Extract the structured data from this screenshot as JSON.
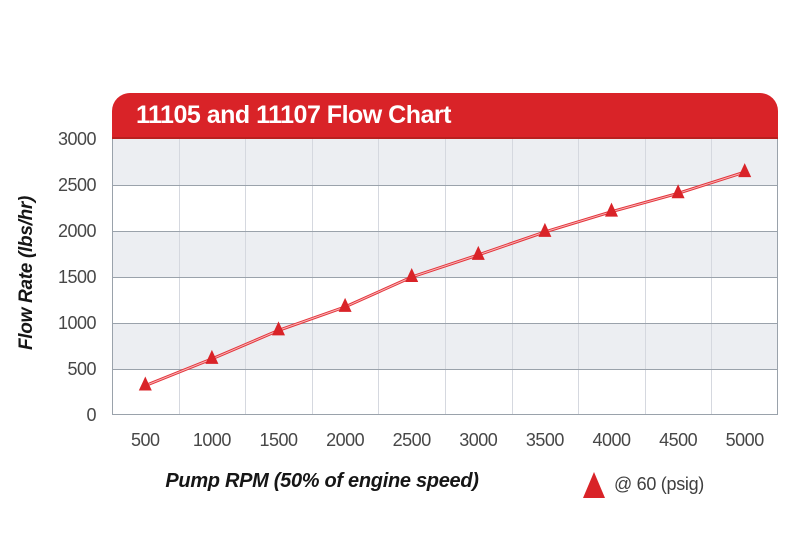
{
  "page": {
    "background": "#ffffff"
  },
  "header": {
    "title": "11105 and 11107 Flow Chart",
    "bg_color": "#d92328",
    "bottom_edge_color": "#b9201f",
    "text_color": "#ffffff"
  },
  "chart_data": {
    "type": "line",
    "title": "11105 and 11107 Flow Chart",
    "xlabel": "Pump RPM (50% of engine speed)",
    "ylabel": "Flow Rate (lbs/hr)",
    "x": [
      500,
      1000,
      1500,
      2000,
      2500,
      3000,
      3500,
      4000,
      4500,
      5000
    ],
    "x_tick_labels": [
      "500",
      "1000",
      "1500",
      "2000",
      "2500",
      "3000",
      "3500",
      "4000",
      "4500",
      "5000"
    ],
    "y_ticks": [
      0,
      500,
      1000,
      1500,
      2000,
      2500,
      3000
    ],
    "y_tick_labels": [
      "0",
      "500",
      "1000",
      "1500",
      "2000",
      "2500",
      "3000"
    ],
    "ylim": [
      0,
      3000
    ],
    "series": [
      {
        "name": "@ 60 (psig)",
        "marker": "triangle-up",
        "marker_color": "#d92328",
        "line_color": "#e4343b",
        "line_core_color": "#f7b6b8",
        "values": [
          320,
          610,
          920,
          1175,
          1500,
          1740,
          1990,
          2210,
          2410,
          2640
        ]
      }
    ],
    "grid": {
      "band_colors": [
        "#eceef2",
        "#ffffff"
      ],
      "h_line_color": "#9aa2ab",
      "v_line_color": "#d5d8df",
      "frame_color": "#9aa2ab",
      "v_lines_at_midpoints": true
    },
    "legend_position": "bottom-right"
  },
  "legend": {
    "label": "@ 60 (psig)",
    "marker_icon": "triangle-up-icon",
    "marker_color": "#d92328"
  },
  "colors": {
    "accent_red": "#d92328",
    "band_gray": "#eceef2",
    "grid_dark": "#9aa2ab",
    "grid_light": "#d5d8df",
    "tick_text": "#474747",
    "axis_title_text": "#161616"
  }
}
